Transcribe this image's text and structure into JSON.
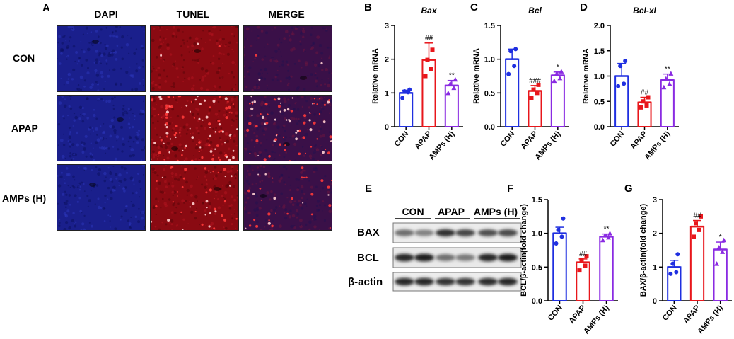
{
  "panels": {
    "a": "A",
    "b": "B",
    "c": "C",
    "d": "D",
    "e": "E",
    "f": "F",
    "g": "G"
  },
  "microscopy": {
    "columns": [
      "DAPI",
      "TUNEL",
      "MERGE"
    ],
    "rows": [
      "CON",
      "APAP",
      "AMPs (H)"
    ],
    "channel_colors": {
      "dapi": "#1a1f8c",
      "tunel": "#8a0a12",
      "merge": "#3a1048"
    }
  },
  "western_blot": {
    "groups": [
      "CON",
      "APAP",
      "AMPs (H)"
    ],
    "bands": [
      "BAX",
      "BCL",
      "β-actin"
    ]
  },
  "colors": {
    "con": "#1f2fe0",
    "apap": "#e8161b",
    "amps": "#8a2be2"
  },
  "chart_data": [
    {
      "id": "bax",
      "panel": "B",
      "type": "bar",
      "title": "Bax",
      "ylabel": "Relative mRNA",
      "categories": [
        "CON",
        "APAP",
        "AMPs (H)"
      ],
      "values": [
        1.0,
        1.98,
        1.22
      ],
      "errors": [
        0.08,
        0.5,
        0.15
      ],
      "points": [
        [
          0.85,
          1.02,
          1.05,
          1.1
        ],
        [
          1.5,
          1.72,
          1.98,
          2.28
        ],
        [
          1.0,
          1.15,
          1.28,
          1.4
        ]
      ],
      "annotations": [
        "",
        "##",
        "**"
      ],
      "ylim": [
        0,
        3
      ],
      "yticks": [
        "0",
        "1",
        "2",
        "3"
      ]
    },
    {
      "id": "bcl",
      "panel": "C",
      "type": "bar",
      "title": "Bcl",
      "ylabel": "Relative mRNA",
      "categories": [
        "CON",
        "APAP",
        "AMPs (H)"
      ],
      "values": [
        1.0,
        0.53,
        0.76
      ],
      "errors": [
        0.15,
        0.08,
        0.05
      ],
      "points": [
        [
          0.78,
          0.9,
          1.12,
          1.15
        ],
        [
          0.42,
          0.5,
          0.55,
          0.62
        ],
        [
          0.68,
          0.72,
          0.78,
          0.82
        ]
      ],
      "annotations": [
        "",
        "###",
        "*"
      ],
      "ylim": [
        0,
        1.5
      ],
      "yticks": [
        "0.0",
        "0.5",
        "1.0",
        "1.5"
      ]
    },
    {
      "id": "bclxl",
      "panel": "D",
      "type": "bar",
      "title": "Bcl-xl",
      "ylabel": "Relative mRNA",
      "categories": [
        "CON",
        "APAP",
        "AMPs (H)"
      ],
      "values": [
        1.0,
        0.48,
        0.92
      ],
      "errors": [
        0.25,
        0.1,
        0.12
      ],
      "points": [
        [
          0.8,
          0.85,
          1.2,
          1.3
        ],
        [
          0.38,
          0.42,
          0.5,
          0.58
        ],
        [
          0.78,
          0.85,
          0.95,
          1.05
        ]
      ],
      "annotations": [
        "",
        "##",
        "**"
      ],
      "ylim": [
        0,
        2.0
      ],
      "yticks": [
        "0.0",
        "0.5",
        "1.0",
        "1.5",
        "2.0"
      ]
    },
    {
      "id": "bcl_wb",
      "panel": "F",
      "type": "bar",
      "title": "",
      "ylabel": "BCL/β-actin(fold change)",
      "categories": [
        "CON",
        "APAP",
        "AMPs (H)"
      ],
      "values": [
        1.0,
        0.57,
        0.95
      ],
      "errors": [
        0.09,
        0.05,
        0.04
      ],
      "points": [
        [
          0.85,
          0.95,
          1.05,
          1.22
        ],
        [
          0.45,
          0.52,
          0.6,
          0.66
        ],
        [
          0.9,
          0.94,
          0.97,
          1.0
        ]
      ],
      "annotations": [
        "",
        "##",
        "**"
      ],
      "ylim": [
        0,
        1.5
      ],
      "yticks": [
        "0.0",
        "0.5",
        "1.0",
        "1.5"
      ]
    },
    {
      "id": "bax_wb",
      "panel": "G",
      "type": "bar",
      "title": "",
      "ylabel": "BAX/β-actin(fold change)",
      "categories": [
        "CON",
        "APAP",
        "AMPs (H)"
      ],
      "values": [
        1.0,
        2.2,
        1.52
      ],
      "errors": [
        0.2,
        0.18,
        0.22
      ],
      "points": [
        [
          0.8,
          0.85,
          1.1,
          1.38
        ],
        [
          1.9,
          2.1,
          2.3,
          2.5
        ],
        [
          1.1,
          1.45,
          1.58,
          1.8
        ]
      ],
      "annotations": [
        "",
        "##",
        "*"
      ],
      "ylim": [
        0,
        3
      ],
      "yticks": [
        "0",
        "1",
        "2",
        "3"
      ]
    }
  ]
}
